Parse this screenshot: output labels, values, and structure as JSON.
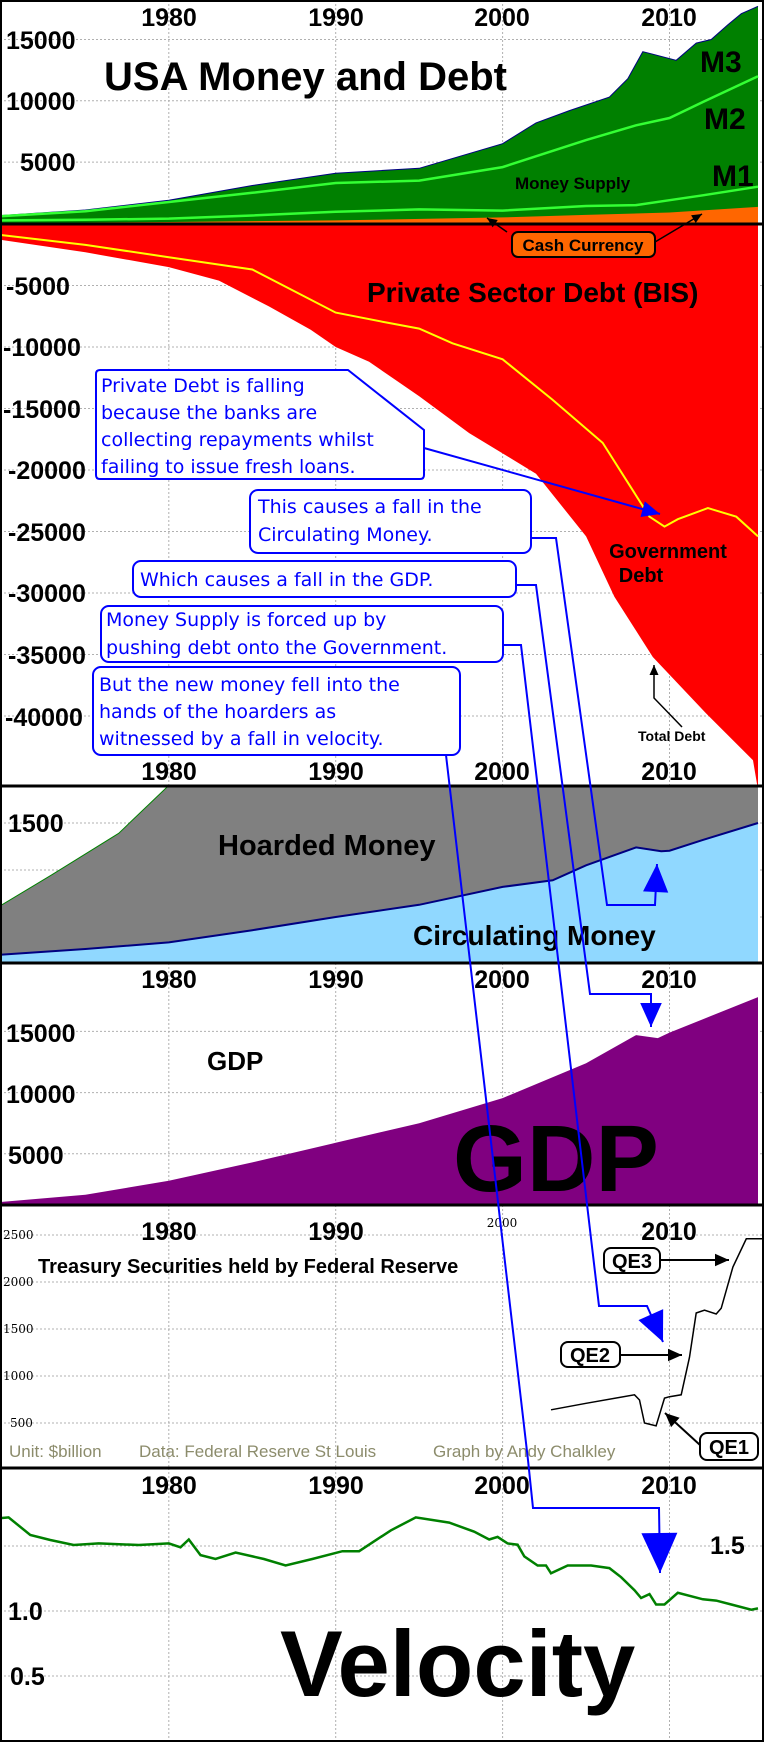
{
  "chart_data": [
    {
      "panel": "money",
      "type": "area",
      "title": "USA Money and Debt",
      "x_ticks": [
        "1980",
        "1990",
        "2000",
        "2010"
      ],
      "y_ticks": [
        "15000",
        "10000",
        "5000"
      ],
      "grid": true,
      "labels": {
        "money_supply": "Money Supply",
        "cash_currency": "Cash Currency"
      },
      "colors": {
        "M3": "#008000",
        "M2": "#33ff33",
        "M1": "#33ff33",
        "Cash Currency": "#ff6600"
      },
      "series": [
        {
          "name": "M3",
          "points": [
            [
              1970,
              650
            ],
            [
              1975,
              1100
            ],
            [
              1980,
              1900
            ],
            [
              1985,
              3100
            ],
            [
              1990,
              4100
            ],
            [
              1995,
              4500
            ],
            [
              2000,
              6500
            ],
            [
              2002,
              8200
            ],
            [
              2004,
              9200
            ],
            [
              2006.4,
              10300
            ],
            [
              2007.5,
              11800
            ],
            [
              2008.4,
              14000
            ],
            [
              2009,
              13800
            ],
            [
              2010.4,
              13300
            ],
            [
              2011.6,
              14700
            ],
            [
              2012.5,
              15000
            ],
            [
              2013.5,
              16200
            ],
            [
              2014.3,
              17100
            ],
            [
              2015.3,
              17700
            ]
          ]
        },
        {
          "name": "M2",
          "points": [
            [
              1970,
              600
            ],
            [
              1975,
              1000
            ],
            [
              1980,
              1750
            ],
            [
              1985,
              2500
            ],
            [
              1990,
              3300
            ],
            [
              1995,
              3500
            ],
            [
              2000,
              4600
            ],
            [
              2005,
              6800
            ],
            [
              2008,
              8000
            ],
            [
              2010,
              8600
            ],
            [
              2012,
              9900
            ],
            [
              2015.3,
              12000
            ]
          ]
        },
        {
          "name": "M1",
          "points": [
            [
              1970,
              250
            ],
            [
              1975,
              300
            ],
            [
              1980,
              400
            ],
            [
              1985,
              650
            ],
            [
              1990,
              950
            ],
            [
              1995,
              1150
            ],
            [
              2000,
              1050
            ],
            [
              2005,
              1430
            ],
            [
              2008,
              1500
            ],
            [
              2010,
              1900
            ],
            [
              2012,
              2300
            ],
            [
              2015.3,
              3000
            ]
          ]
        },
        {
          "name": "Cash Currency",
          "points": [
            [
              1970,
              50
            ],
            [
              1980,
              120
            ],
            [
              1990,
              250
            ],
            [
              2000,
              500
            ],
            [
              2005,
              700
            ],
            [
              2010,
              900
            ],
            [
              2015.3,
              1350
            ]
          ]
        }
      ]
    },
    {
      "panel": "debt",
      "type": "area",
      "title": "Private Sector Debt (BIS)",
      "x_ticks": [
        "1980",
        "1990",
        "2000",
        "2010"
      ],
      "y_ticks": [
        "-5000",
        "-10000",
        "-15000",
        "-20000",
        "-25000",
        "-30000",
        "-35000",
        "-40000"
      ],
      "grid": true,
      "labels": {
        "government_debt_1": "Government",
        "government_debt_2": "Debt",
        "total_debt": "Total Debt"
      },
      "colors": {
        "Total Debt": "#ff0000",
        "Private Sector Debt (BIS)": "#ffff00"
      },
      "series": [
        {
          "name": "Total Debt",
          "points": [
            [
              1970,
              -1300
            ],
            [
              1975,
              -2300
            ],
            [
              1980,
              -3500
            ],
            [
              1983,
              -4600
            ],
            [
              1986,
              -6700
            ],
            [
              1988.5,
              -8600
            ],
            [
              1990,
              -10000
            ],
            [
              1992,
              -11200
            ],
            [
              1995,
              -14000
            ],
            [
              1998,
              -17000
            ],
            [
              2002,
              -20300
            ],
            [
              2005,
              -25400
            ],
            [
              2006.7,
              -30300
            ],
            [
              2009,
              -35200
            ],
            [
              2012.2,
              -39800
            ],
            [
              2015,
              -43600
            ]
          ]
        },
        {
          "name": "Private Sector Debt (BIS)",
          "points": [
            [
              1970,
              -900
            ],
            [
              1975,
              -1700
            ],
            [
              1980,
              -2700
            ],
            [
              1985,
              -3700
            ],
            [
              1990,
              -7200
            ],
            [
              1993,
              -8000
            ],
            [
              1995,
              -8500
            ],
            [
              1997,
              -9700
            ],
            [
              2000,
              -11000
            ],
            [
              2003,
              -14300
            ],
            [
              2006,
              -17800
            ],
            [
              2007.4,
              -20800
            ],
            [
              2008.8,
              -23800
            ],
            [
              2009.7,
              -24600
            ],
            [
              2010.5,
              -24000
            ],
            [
              2012.3,
              -23100
            ],
            [
              2014,
              -23800
            ],
            [
              2015.3,
              -25400
            ]
          ]
        }
      ]
    },
    {
      "panel": "hoarded",
      "type": "area",
      "y_ticks": [
        "1500"
      ],
      "grid": true,
      "labels": {
        "hoarded": "Hoarded Money",
        "circulating": "Circulating Money"
      },
      "colors": {
        "Hoarded Money": "#808080",
        "Circulating Money": "#90d8ff"
      },
      "series": [
        {
          "name": "Hoarded Money",
          "points": [
            [
              1970,
              630
            ],
            [
              1973,
              950
            ],
            [
              1977,
              1390
            ],
            [
              1980,
              1900
            ],
            [
              1982,
              2300
            ],
            [
              2015.3,
              3000
            ]
          ]
        },
        {
          "name": "Circulating Money",
          "points": [
            [
              1970,
              100
            ],
            [
              1975,
              160
            ],
            [
              1980,
              230
            ],
            [
              1985,
              360
            ],
            [
              1990,
              500
            ],
            [
              1995,
              630
            ],
            [
              2000,
              820
            ],
            [
              2003,
              890
            ],
            [
              2005,
              1050
            ],
            [
              2008,
              1240
            ],
            [
              2009.5,
              1200
            ],
            [
              2010,
              1205
            ],
            [
              2012,
              1320
            ],
            [
              2015.3,
              1500
            ]
          ]
        }
      ]
    },
    {
      "panel": "gdp",
      "type": "area",
      "x_ticks": [
        "1980",
        "1990",
        "2000",
        "2010"
      ],
      "y_ticks": [
        "15000",
        "10000",
        "5000"
      ],
      "grid": true,
      "labels": {
        "small": "GDP",
        "big": "GDP"
      },
      "colors": {
        "GDP": "#800080"
      },
      "series": [
        {
          "name": "GDP",
          "points": [
            [
              1970,
              1070
            ],
            [
              1975,
              1650
            ],
            [
              1980,
              2800
            ],
            [
              1985,
              4300
            ],
            [
              1990,
              5900
            ],
            [
              1995,
              7500
            ],
            [
              2000,
              9550
            ],
            [
              2005,
              12400
            ],
            [
              2008,
              14700
            ],
            [
              2009.3,
              14450
            ],
            [
              2010,
              14900
            ],
            [
              2012,
              16000
            ],
            [
              2015.3,
              17800
            ]
          ]
        }
      ]
    },
    {
      "panel": "treasury",
      "type": "line",
      "title": "Treasury Securities held by Federal Reserve",
      "x_ticks": [
        "1980",
        "1990",
        "2000",
        "2010"
      ],
      "y_ticks": [
        "2500",
        "2000",
        "1500",
        "1000",
        "500"
      ],
      "grid": true,
      "labels": {
        "qe1": "QE1",
        "qe2": "QE2",
        "qe3": "QE3"
      },
      "footer": {
        "unit": "Unit: $billion",
        "source": "Data: Federal Reserve St Louis",
        "credit": "Graph by Andy Chalkley"
      },
      "colors": {
        "line": "#000000"
      },
      "series": [
        {
          "points": [
            [
              2002.9,
              640
            ],
            [
              2005,
              710
            ],
            [
              2007.9,
              800
            ],
            [
              2008.2,
              745
            ],
            [
              2008.5,
              500
            ],
            [
              2009.2,
              470
            ],
            [
              2009.7,
              765
            ],
            [
              2010,
              780
            ],
            [
              2010.7,
              800
            ],
            [
              2011.2,
              1200
            ],
            [
              2011.6,
              1670
            ],
            [
              2012.1,
              1700
            ],
            [
              2012.8,
              1660
            ],
            [
              2013.1,
              1720
            ],
            [
              2013.8,
              2160
            ],
            [
              2014.6,
              2460
            ],
            [
              2015.6,
              2460
            ]
          ]
        }
      ]
    },
    {
      "panel": "velocity",
      "type": "line",
      "x_ticks": [
        "1980",
        "1990",
        "2000",
        "2010"
      ],
      "y_ticks": [
        "1.5",
        "1.0",
        "0.5"
      ],
      "grid": true,
      "labels": {
        "big": "Velocity"
      },
      "colors": {
        "line": "#008000"
      },
      "series": [
        {
          "name": "Velocity",
          "points": [
            [
              1970,
              1.715
            ],
            [
              1970.4,
              1.72
            ],
            [
              1971.7,
              1.585
            ],
            [
              1972.9,
              1.546
            ],
            [
              1974.3,
              1.508
            ],
            [
              1975.8,
              1.52
            ],
            [
              1978.2,
              1.508
            ],
            [
              1980,
              1.52
            ],
            [
              1980.7,
              1.49
            ],
            [
              1981.2,
              1.55
            ],
            [
              1981.9,
              1.43
            ],
            [
              1982.8,
              1.4
            ],
            [
              1984,
              1.45
            ],
            [
              1985.7,
              1.4
            ],
            [
              1987,
              1.35
            ],
            [
              1988.6,
              1.4
            ],
            [
              1990.4,
              1.46
            ],
            [
              1991.4,
              1.46
            ],
            [
              1993.3,
              1.62
            ],
            [
              1994.8,
              1.72
            ],
            [
              1996.8,
              1.68
            ],
            [
              1998.3,
              1.61
            ],
            [
              1999.2,
              1.55
            ],
            [
              1999.7,
              1.57
            ],
            [
              2000.3,
              1.52
            ],
            [
              2000.9,
              1.51
            ],
            [
              2001.3,
              1.42
            ],
            [
              2002.1,
              1.35
            ],
            [
              2002.6,
              1.35
            ],
            [
              2002.9,
              1.29
            ],
            [
              2003.9,
              1.35
            ],
            [
              2005.3,
              1.35
            ],
            [
              2006.4,
              1.33
            ],
            [
              2007.1,
              1.26
            ],
            [
              2007.9,
              1.16
            ],
            [
              2008.3,
              1.1
            ],
            [
              2008.8,
              1.13
            ],
            [
              2009.2,
              1.05
            ],
            [
              2009.7,
              1.05
            ],
            [
              2010.5,
              1.14
            ],
            [
              2012,
              1.09
            ],
            [
              2012.8,
              1.08
            ],
            [
              2013.7,
              1.05
            ],
            [
              2014.9,
              1.01
            ],
            [
              2015.3,
              1.02
            ]
          ]
        }
      ]
    }
  ],
  "callouts": {
    "private_debt": [
      "Private Debt is falling",
      "because the banks are",
      "collecting repayments whilst",
      "failing to issue fresh loans."
    ],
    "circulating": [
      "This causes a fall in the",
      "Circulating Money."
    ],
    "gdp": [
      "Which causes a fall in the GDP."
    ],
    "money_supply": [
      "Money Supply is forced up by",
      "pushing debt onto the Government."
    ],
    "velocity": [
      "But the new money fell into the",
      "hands of the hoarders as",
      "witnessed by a fall in velocity."
    ],
    "color": "#0000ff"
  }
}
